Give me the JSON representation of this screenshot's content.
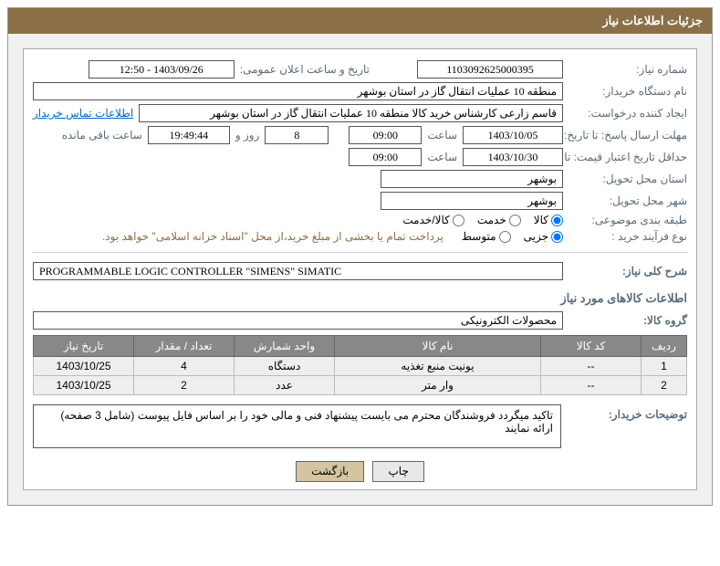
{
  "header": {
    "title": "جزئیات اطلاعات نیاز"
  },
  "fields": {
    "need_no_label": "شماره نیاز:",
    "need_no": "1103092625000395",
    "announce_label": "تاریخ و ساعت اعلان عمومی:",
    "announce": "1403/09/26 - 12:50",
    "buyer_label": "نام دستگاه خریدار:",
    "buyer": "منطقه 10 عملیات انتقال گاز در استان بوشهر",
    "requester_label": "ایجاد کننده درخواست:",
    "requester": "قاسم زارعی کارشناس خرید کالا منطقه 10 عملیات انتقال گاز در استان بوشهر",
    "contact_link": "اطلاعات تماس خریدار",
    "deadline_label": "مهلت ارسال پاسخ: تا تاریخ:",
    "deadline_date": "1403/10/05",
    "time1_label": "ساعت",
    "deadline_time": "09:00",
    "days": "8",
    "days_label": "روز و",
    "countdown": "19:49:44",
    "remaining_label": "ساعت باقی مانده",
    "min_valid_label": "حداقل تاریخ اعتبار قیمت: تا تاریخ:",
    "min_valid_date": "1403/10/30",
    "min_valid_time": "09:00",
    "delivery_prov_label": "استان محل تحویل:",
    "delivery_prov": "بوشهر",
    "delivery_city_label": "شهر محل تحویل:",
    "delivery_city": "بوشهر",
    "category_label": "طبقه بندی موضوعی:",
    "cat_goods": "کالا",
    "cat_service": "خدمت",
    "cat_both": "کالا/خدمت",
    "process_label": "نوع فرآیند خرید :",
    "proc_partial": "جزیی",
    "proc_medium": "متوسط",
    "process_note": "پرداخت تمام یا بخشی از مبلغ خرید،از محل \"اسناد خزانه اسلامی\" خواهد بود.",
    "overview_label": "شرح کلی نیاز:",
    "overview": "PROGRAMMABLE LOGIC CONTROLLER \"SIMENS\" SIMATIC",
    "goods_section": "اطلاعات کالاهای مورد نیاز",
    "group_label": "گروه کالا:",
    "group": "محصولات الکترونیکی",
    "buyer_notes_label": "توضیحات خریدار:",
    "buyer_notes": "تاکید میگردد فروشندگان محترم می بایست پیشنهاد فنی و مالی خود را بر اساس فایل پیوست (شامل 3 صفحه) ارائه نمایند"
  },
  "table": {
    "headers": {
      "row": "ردیف",
      "code": "کد کالا",
      "name": "نام کالا",
      "unit": "واحد شمارش",
      "qty": "تعداد / مقدار",
      "need_date": "تاریخ نیاز"
    },
    "rows": [
      {
        "n": "1",
        "code": "--",
        "name": "یونیت منبع تغذیه",
        "unit": "دستگاه",
        "qty": "4",
        "need_date": "1403/10/25"
      },
      {
        "n": "2",
        "code": "--",
        "name": "وار متر",
        "unit": "عدد",
        "qty": "2",
        "need_date": "1403/10/25"
      }
    ]
  },
  "buttons": {
    "print": "چاپ",
    "back": "بازگشت"
  },
  "colors": {
    "header_bg": "#8a6f47",
    "content_bg": "#f0f0f0",
    "label_color": "#5a6b7a",
    "th_bg": "#888888",
    "td_bg": "#eeeeee"
  }
}
